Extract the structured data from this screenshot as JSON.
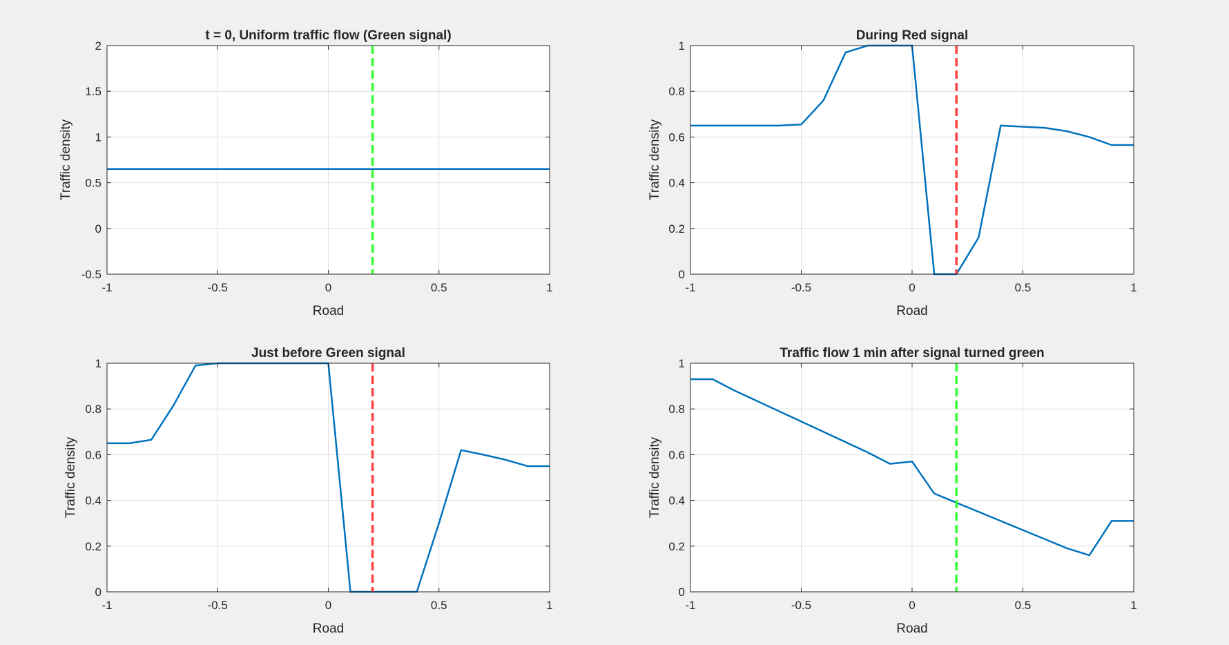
{
  "chart_data": [
    {
      "type": "line",
      "title": "t = 0, Uniform traffic flow (Green signal)",
      "xlabel": "Road",
      "ylabel": "Traffic density",
      "xlim": [
        -1,
        1
      ],
      "ylim": [
        -0.5,
        2
      ],
      "xticks": [
        -1,
        -0.5,
        0,
        0.5,
        1
      ],
      "xtick_labels": [
        "-1",
        "-0.5",
        "0",
        "0.5",
        "1"
      ],
      "yticks": [
        -0.5,
        0,
        0.5,
        1,
        1.5,
        2
      ],
      "ytick_labels": [
        "-0.5",
        "0",
        "0.5",
        "1",
        "1.5",
        "2"
      ],
      "grid": true,
      "series": [
        {
          "color": "#0072bd",
          "style": "solid",
          "x": [
            -1,
            1
          ],
          "y": [
            0.65,
            0.65
          ]
        }
      ],
      "signal": {
        "x": 0.2,
        "color": "#33ff33",
        "style": "dashed"
      }
    },
    {
      "type": "line",
      "title": "During Red signal",
      "xlabel": "Road",
      "ylabel": "Traffic density",
      "xlim": [
        -1,
        1
      ],
      "ylim": [
        0,
        1
      ],
      "xticks": [
        -1,
        -0.5,
        0,
        0.5,
        1
      ],
      "xtick_labels": [
        "-1",
        "-0.5",
        "0",
        "0.5",
        "1"
      ],
      "yticks": [
        0,
        0.2,
        0.4,
        0.6,
        0.8,
        1
      ],
      "ytick_labels": [
        "0",
        "0.2",
        "0.4",
        "0.6",
        "0.8",
        "1"
      ],
      "grid": true,
      "series": [
        {
          "color": "#0072bd",
          "style": "solid",
          "x": [
            -1,
            -0.9,
            -0.8,
            -0.7,
            -0.6,
            -0.5,
            -0.4,
            -0.3,
            -0.2,
            -0.1,
            0,
            0.1,
            0.2,
            0.3,
            0.4,
            0.5,
            0.6,
            0.7,
            0.8,
            0.9,
            1
          ],
          "y": [
            0.65,
            0.65,
            0.65,
            0.65,
            0.65,
            0.655,
            0.76,
            0.97,
            1.0,
            1.0,
            1.0,
            0,
            0,
            0.16,
            0.65,
            0.645,
            0.64,
            0.625,
            0.6,
            0.565,
            0.565
          ]
        }
      ],
      "signal": {
        "x": 0.2,
        "color": "#ff4040",
        "style": "dashed"
      }
    },
    {
      "type": "line",
      "title": "Just before Green signal",
      "xlabel": "Road",
      "ylabel": "Traffic density",
      "xlim": [
        -1,
        1
      ],
      "ylim": [
        0,
        1
      ],
      "xticks": [
        -1,
        -0.5,
        0,
        0.5,
        1
      ],
      "xtick_labels": [
        "-1",
        "-0.5",
        "0",
        "0.5",
        "1"
      ],
      "yticks": [
        0,
        0.2,
        0.4,
        0.6,
        0.8,
        1
      ],
      "ytick_labels": [
        "0",
        "0.2",
        "0.4",
        "0.6",
        "0.8",
        "1"
      ],
      "grid": true,
      "series": [
        {
          "color": "#0072bd",
          "style": "solid",
          "x": [
            -1,
            -0.9,
            -0.8,
            -0.7,
            -0.6,
            -0.5,
            -0.4,
            -0.3,
            -0.2,
            -0.1,
            0,
            0.1,
            0.2,
            0.3,
            0.4,
            0.5,
            0.6,
            0.7,
            0.8,
            0.9,
            1
          ],
          "y": [
            0.65,
            0.65,
            0.665,
            0.815,
            0.99,
            1.0,
            1.0,
            1.0,
            1.0,
            1.0,
            1.0,
            0,
            0,
            0,
            0,
            0.3,
            0.62,
            0.6,
            0.578,
            0.55,
            0.55
          ]
        }
      ],
      "signal": {
        "x": 0.2,
        "color": "#ff4040",
        "style": "dashed"
      }
    },
    {
      "type": "line",
      "title": "Traffic flow 1 min after signal turned green",
      "xlabel": "Road",
      "ylabel": "Traffic density",
      "xlim": [
        -1,
        1
      ],
      "ylim": [
        0,
        1
      ],
      "xticks": [
        -1,
        -0.5,
        0,
        0.5,
        1
      ],
      "xtick_labels": [
        "-1",
        "-0.5",
        "0",
        "0.5",
        "1"
      ],
      "yticks": [
        0,
        0.2,
        0.4,
        0.6,
        0.8,
        1
      ],
      "ytick_labels": [
        "0",
        "0.2",
        "0.4",
        "0.6",
        "0.8",
        "1"
      ],
      "grid": true,
      "series": [
        {
          "color": "#0072bd",
          "style": "solid",
          "x": [
            -1,
            -0.9,
            -0.8,
            -0.7,
            -0.6,
            -0.5,
            -0.4,
            -0.3,
            -0.2,
            -0.1,
            0,
            0.1,
            0.2,
            0.3,
            0.4,
            0.5,
            0.6,
            0.7,
            0.8,
            0.9,
            1
          ],
          "y": [
            0.93,
            0.93,
            0.88,
            0.835,
            0.79,
            0.745,
            0.7,
            0.655,
            0.61,
            0.56,
            0.57,
            0.43,
            0.39,
            0.35,
            0.31,
            0.27,
            0.23,
            0.19,
            0.16,
            0.31,
            0.31
          ]
        }
      ],
      "signal": {
        "x": 0.2,
        "color": "#33ff33",
        "style": "dashed"
      }
    }
  ]
}
